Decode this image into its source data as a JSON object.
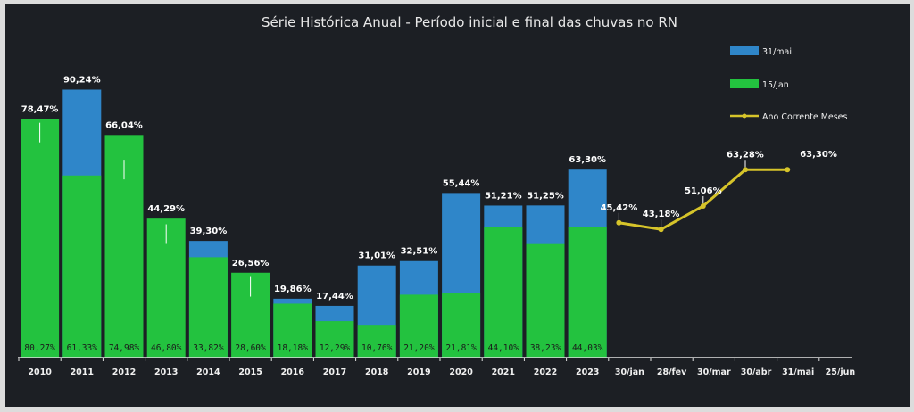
{
  "chart_data": {
    "type": "bar",
    "title": "Série Histórica Anual - Período inicial e final das chuvas no RN",
    "categories": [
      "2010",
      "2011",
      "2012",
      "2013",
      "2014",
      "2015",
      "2016",
      "2017",
      "2018",
      "2019",
      "2020",
      "2021",
      "2022",
      "2023"
    ],
    "series": [
      {
        "name": "31/mai",
        "color": "#2f86c9",
        "values": [
          78.47,
          90.24,
          66.04,
          44.29,
          39.3,
          26.56,
          19.86,
          17.44,
          31.01,
          32.51,
          55.44,
          51.21,
          51.25,
          63.3
        ],
        "labels": [
          "78,47%",
          "90,24%",
          "66,04%",
          "44,29%",
          "39,30%",
          "26,56%",
          "19,86%",
          "17,44%",
          "31,01%",
          "32,51%",
          "55,44%",
          "51,21%",
          "51,25%",
          "63,30%"
        ]
      },
      {
        "name": "15/jan",
        "color": "#23c23f",
        "values": [
          80.27,
          61.33,
          74.98,
          46.8,
          33.82,
          28.6,
          18.18,
          12.29,
          10.76,
          21.2,
          21.81,
          44.1,
          38.23,
          44.03
        ],
        "labels": [
          "80,27%",
          "61,33%",
          "74,98%",
          "46,80%",
          "33,82%",
          "28,60%",
          "18,18%",
          "12,29%",
          "10,76%",
          "21,20%",
          "21,81%",
          "44,10%",
          "38,23%",
          "44,03%"
        ]
      }
    ],
    "line_series": {
      "name": "Ano Corrente Meses",
      "color": "#d6c42a",
      "x": [
        "30/jan",
        "28/fev",
        "30/mar",
        "30/abr",
        "31/mai"
      ],
      "values": [
        45.42,
        43.18,
        51.06,
        63.28,
        63.3
      ],
      "labels": [
        "45,42%",
        "43,18%",
        "51,06%",
        "63,28%",
        "63,30%"
      ]
    },
    "x_tick_labels": [
      "2010",
      "2011",
      "2012",
      "2013",
      "2014",
      "2015",
      "2016",
      "2017",
      "2018",
      "2019",
      "2020",
      "2021",
      "2022",
      "2023",
      "30/jan",
      "28/fev",
      "30/mar",
      "30/abr",
      "31/mai",
      "25/jun"
    ],
    "ylim": [
      0,
      100
    ],
    "grid": false,
    "legend_position": "top-right"
  }
}
